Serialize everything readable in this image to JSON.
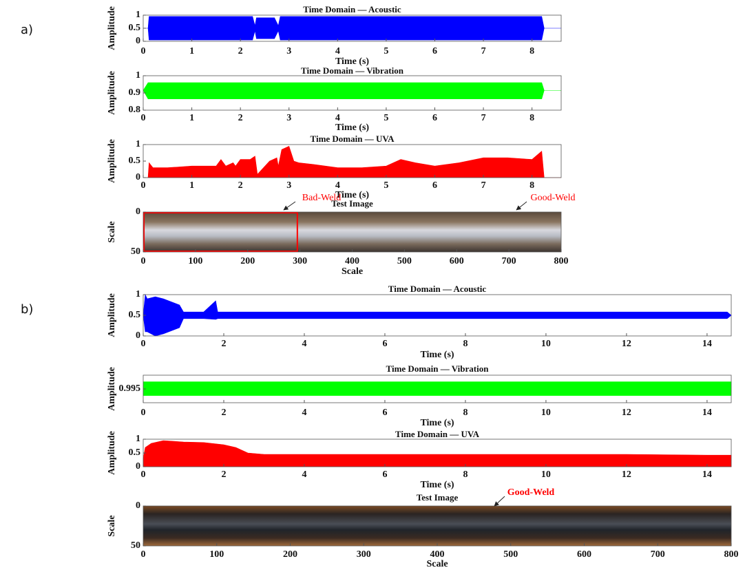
{
  "chart_data": [
    {
      "type": "band",
      "panel_label": "a)",
      "title": "Time Domain — Acoustic",
      "x_label": "Time (s)",
      "y_label": "Amplitude",
      "color": "#0000ff",
      "xlim": [
        0,
        8.6
      ],
      "ylim": [
        0,
        1
      ],
      "xticks": [
        0,
        1,
        2,
        3,
        4,
        5,
        6,
        7,
        8
      ],
      "yticks": [
        0,
        0.5,
        1
      ],
      "x": [
        0,
        0.1,
        0.12,
        2.25,
        2.3,
        2.33,
        2.7,
        2.78,
        2.82,
        8.2,
        8.25,
        8.6
      ],
      "upper": [
        0.5,
        0.5,
        0.95,
        0.95,
        0.6,
        0.9,
        0.9,
        0.6,
        0.95,
        0.95,
        0.5,
        0.5
      ],
      "lower": [
        0.5,
        0.5,
        0.05,
        0.05,
        0.4,
        0.1,
        0.1,
        0.4,
        0.05,
        0.05,
        0.5,
        0.5
      ]
    },
    {
      "type": "band",
      "title": "Time Domain — Vibration",
      "x_label": "Time (s)",
      "y_label": "Amplitude",
      "color": "#00ff00",
      "xlim": [
        0,
        8.6
      ],
      "ylim": [
        0.8,
        1
      ],
      "xticks": [
        0,
        1,
        2,
        3,
        4,
        5,
        6,
        7,
        8
      ],
      "yticks": [
        0.8,
        0.9,
        1
      ],
      "x": [
        0,
        0.1,
        8.2,
        8.25,
        8.6
      ],
      "upper": [
        0.915,
        0.96,
        0.96,
        0.915,
        0.915
      ],
      "lower": [
        0.915,
        0.865,
        0.865,
        0.915,
        0.915
      ]
    },
    {
      "type": "area",
      "title": "Time Domain — UVA",
      "x_label": "Time (s)",
      "y_label": "Amplitude",
      "color": "#ff0000",
      "xlim": [
        0,
        8.6
      ],
      "ylim": [
        0,
        1
      ],
      "xticks": [
        0,
        1,
        2,
        3,
        4,
        5,
        6,
        7,
        8
      ],
      "yticks": [
        0,
        0.5,
        1
      ],
      "x": [
        0,
        0.1,
        0.12,
        0.2,
        0.5,
        1,
        1.5,
        1.6,
        1.7,
        1.85,
        1.9,
        2.0,
        2.2,
        2.3,
        2.35,
        2.6,
        2.75,
        2.78,
        2.85,
        3.0,
        3.1,
        3.2,
        3.5,
        4,
        4.5,
        5,
        5.3,
        5.6,
        6,
        6.5,
        7,
        7.5,
        8,
        8.2,
        8.25,
        8.6
      ],
      "values": [
        0,
        0,
        0.45,
        0.3,
        0.3,
        0.35,
        0.35,
        0.55,
        0.35,
        0.45,
        0.35,
        0.55,
        0.55,
        0.65,
        0.1,
        0.5,
        0.6,
        0.35,
        0.85,
        0.95,
        0.5,
        0.45,
        0.4,
        0.3,
        0.3,
        0.35,
        0.55,
        0.45,
        0.35,
        0.45,
        0.6,
        0.6,
        0.55,
        0.8,
        0,
        0
      ]
    },
    {
      "type": "image",
      "title": "Test Image",
      "x_label": "Scale",
      "y_label": "Scale",
      "xlim": [
        0,
        800
      ],
      "ylim": [
        50,
        0
      ],
      "xticks": [
        0,
        100,
        200,
        300,
        400,
        500,
        600,
        700,
        800
      ],
      "yticks": [
        0,
        50
      ],
      "highlight": [
        0,
        295
      ],
      "highlight_color": "#ff0000",
      "annotations": [
        {
          "text": "Bad-Weld",
          "color": "#ff0000"
        },
        {
          "text": "Good-Weld",
          "color": "#ff0000"
        }
      ]
    },
    {
      "type": "band",
      "panel_label": "b)",
      "title": "Time Domain — Acoustic",
      "x_label": "Time (s)",
      "y_label": "Amplitude",
      "color": "#0000ff",
      "xlim": [
        0,
        14.6
      ],
      "ylim": [
        0,
        1
      ],
      "xticks": [
        0,
        2,
        4,
        6,
        8,
        10,
        12,
        14
      ],
      "yticks": [
        0,
        0.5,
        1
      ],
      "x": [
        0,
        0.05,
        0.1,
        0.3,
        0.5,
        0.9,
        1.0,
        1.5,
        1.8,
        1.85,
        1.9,
        14.5,
        14.6
      ],
      "upper": [
        0.5,
        1,
        0.9,
        0.95,
        0.9,
        0.75,
        0.58,
        0.58,
        0.85,
        0.58,
        0.58,
        0.58,
        0.5
      ],
      "lower": [
        0.5,
        0.1,
        0.1,
        0,
        0.05,
        0.2,
        0.42,
        0.42,
        0.4,
        0.42,
        0.42,
        0.42,
        0.5
      ]
    },
    {
      "type": "band",
      "title": "Time Domain — Vibration",
      "x_label": "Time (s)",
      "y_label": "Amplitude",
      "color": "#00ff00",
      "xlim": [
        0,
        14.6
      ],
      "ylim": [
        0.9925,
        0.9975
      ],
      "xticks": [
        0,
        2,
        4,
        6,
        8,
        10,
        12,
        14
      ],
      "yticks": [
        0.995
      ],
      "x": [
        0,
        14.6
      ],
      "upper": [
        0.9963,
        0.9963
      ],
      "lower": [
        0.9938,
        0.9938
      ]
    },
    {
      "type": "area",
      "title": "Time Domain — UVA",
      "x_label": "Time (s)",
      "y_label": "Amplitude",
      "color": "#ff0000",
      "xlim": [
        0,
        14.6
      ],
      "ylim": [
        0,
        1
      ],
      "xticks": [
        0,
        2,
        4,
        6,
        8,
        10,
        12,
        14
      ],
      "yticks": [
        0,
        0.5,
        1
      ],
      "x": [
        0,
        0.05,
        0.2,
        0.5,
        1,
        1.5,
        2,
        2.3,
        2.6,
        3,
        4,
        6,
        8,
        10,
        12,
        14,
        14.6
      ],
      "values": [
        0.3,
        0.7,
        0.85,
        0.95,
        0.9,
        0.88,
        0.8,
        0.7,
        0.5,
        0.45,
        0.45,
        0.45,
        0.45,
        0.45,
        0.45,
        0.42,
        0.42
      ]
    },
    {
      "type": "image",
      "title": "Test Image",
      "x_label": "Scale",
      "y_label": "Scale",
      "xlim": [
        0,
        800
      ],
      "ylim": [
        50,
        0
      ],
      "xticks": [
        0,
        100,
        200,
        300,
        400,
        500,
        600,
        700,
        800
      ],
      "yticks": [
        0,
        50
      ],
      "annotations": [
        {
          "text": "Good-Weld",
          "color": "#ff0000"
        }
      ]
    }
  ]
}
